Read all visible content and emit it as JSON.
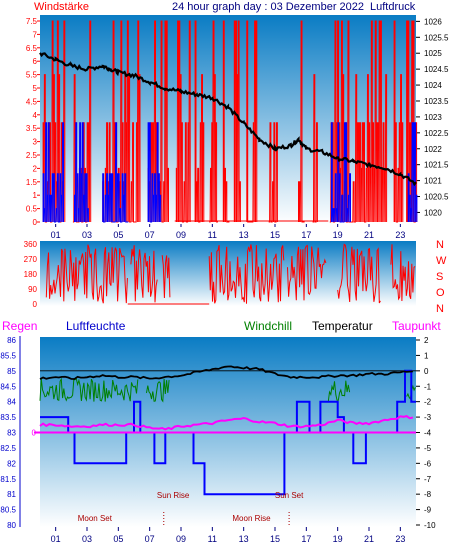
{
  "header": {
    "title": "24 hour graph day : 03 Dezember 2022",
    "left_label": "Windstärke",
    "right_label": "Luftdruck"
  },
  "colors": {
    "panel_top": "#0a7cc4",
    "panel_bottom": "#ffffff",
    "wind_gust": "#ff0000",
    "wind_avg": "#0000ff",
    "pressure": "#000000",
    "direction": "#ff0000",
    "temperature": "#000000",
    "windchill": "#008000",
    "dewpoint": "#ff00ff",
    "humidity": "#0000ff",
    "rain": "#ff00ff",
    "axis_text_left": "#ff0000",
    "axis_text_blue": "#0000cc",
    "moon_text": "#aa0000",
    "time_text": "#000080"
  },
  "time_axis": {
    "labels": [
      "01",
      "03",
      "05",
      "07",
      "09",
      "11",
      "13",
      "15",
      "17",
      "19",
      "21",
      "23"
    ]
  },
  "chart_data": [
    {
      "type": "line",
      "title": "24 hour graph day : 03 Dezember 2022",
      "ylabel_left": "Windstärke",
      "ylabel_right": "Luftdruck",
      "x_range_hours": [
        0,
        24
      ],
      "left_axis": {
        "ticks": [
          "0",
          "0.5",
          "1",
          "1.5",
          "2",
          "2.5",
          "3",
          "3.5",
          "4",
          "4.5",
          "5",
          "5.5",
          "6",
          "6.5",
          "7",
          "7.5"
        ],
        "ylim": [
          0,
          7.5
        ]
      },
      "right_axis": {
        "ticks": [
          "1020",
          "1020.5",
          "1021",
          "1021.5",
          "1022",
          "1022.5",
          "1023",
          "1023.5",
          "1024",
          "1024.5",
          "1025",
          "1025.5",
          "1026"
        ],
        "ylim": [
          1019.7,
          1026.2
        ]
      },
      "series": [
        {
          "name": "Luftdruck",
          "axis": "right",
          "x": [
            0,
            1,
            2,
            3,
            4,
            4.5,
            5,
            6,
            7,
            8,
            9,
            10,
            11,
            12,
            13,
            14,
            15,
            16,
            16.5,
            17,
            18,
            19,
            20,
            21,
            22,
            23,
            24
          ],
          "y": [
            1025.0,
            1024.8,
            1024.6,
            1024.5,
            1024.6,
            1024.5,
            1024.4,
            1024.3,
            1024.1,
            1023.9,
            1023.8,
            1023.7,
            1023.6,
            1023.3,
            1022.8,
            1022.3,
            1022.0,
            1022.1,
            1022.3,
            1022.0,
            1021.9,
            1021.7,
            1021.6,
            1021.5,
            1021.4,
            1021.2,
            1020.9
          ]
        },
        {
          "name": "Böen",
          "axis": "left",
          "segments_hours": [
            [
              0.2,
              1.6
            ],
            [
              2.1,
              3.2
            ],
            [
              4.0,
              6.4
            ],
            [
              6.9,
              8.2
            ],
            [
              8.7,
              9.6
            ],
            [
              9.9,
              10.4
            ],
            [
              10.8,
              11.3
            ],
            [
              11.7,
              12.1
            ],
            [
              12.4,
              12.8
            ],
            [
              13.2,
              13.8
            ],
            [
              14.6,
              15.1
            ],
            [
              16.5,
              16.9
            ],
            [
              17.4,
              17.7
            ],
            [
              18.5,
              22.1
            ],
            [
              22.6,
              23.1
            ],
            [
              23.4,
              24
            ]
          ],
          "peak": 7.5
        },
        {
          "name": "Windgeschwindigkeit",
          "axis": "left",
          "segments_hours": [
            [
              0.2,
              1.5
            ],
            [
              2.2,
              3.1
            ],
            [
              4.0,
              5.6
            ],
            [
              6.9,
              7.7
            ],
            [
              18.6,
              19.8
            ],
            [
              23.5,
              24
            ]
          ],
          "peak": 3.7
        }
      ]
    },
    {
      "type": "line",
      "title": "",
      "y_ticks": [
        "0",
        "90",
        "180",
        "270",
        "360"
      ],
      "ylim": [
        0,
        360
      ],
      "right_labels": [
        "N",
        "W",
        "S",
        "O",
        "N"
      ],
      "series": [
        {
          "name": "Windrichtung",
          "segments_hours": [
            [
              0.4,
              5.6
            ],
            [
              5.8,
              7.5
            ],
            [
              7.8,
              8.3
            ],
            [
              10.8,
              15.6
            ],
            [
              15.8,
              18.3
            ],
            [
              19.0,
              21.8
            ],
            [
              22.4,
              24
            ]
          ],
          "range": [
            0,
            360
          ]
        }
      ]
    },
    {
      "type": "line",
      "title": "",
      "legend": [
        "Regen",
        "Luftfeuchte",
        "Windchill",
        "Temperatur",
        "Taupunkt"
      ],
      "left_axis_rain": {
        "ticks": [
          "0"
        ]
      },
      "left_axis_humidity": {
        "ticks": [
          "80",
          "80.5",
          "81",
          "81.5",
          "82",
          "82.5",
          "83",
          "83.5",
          "84",
          "84.5",
          "85",
          "85.5",
          "86"
        ],
        "ylim": [
          80,
          86
        ]
      },
      "right_axis_temperature": {
        "ticks": [
          "2",
          "1",
          "0",
          "-1",
          "-2",
          "-3",
          "-4",
          "-5",
          "-6",
          "-7",
          "-8",
          "-9",
          "-10"
        ],
        "ylim": [
          -10,
          2
        ]
      },
      "annotations": [
        {
          "text": "Moon Set",
          "hour": 3.5
        },
        {
          "text": "Sun Rise",
          "hour": 8.5
        },
        {
          "text": "Moon Rise",
          "hour": 13.5
        },
        {
          "text": "Sun Set",
          "hour": 15.9
        }
      ],
      "series": [
        {
          "name": "Temperatur",
          "axis": "right",
          "x": [
            0,
            1,
            2,
            3,
            4,
            5,
            6,
            7,
            8,
            9,
            10,
            11,
            12,
            13,
            14,
            15,
            16,
            17,
            18,
            19,
            20,
            21,
            22,
            23,
            24
          ],
          "y": [
            -0.5,
            -0.4,
            -0.5,
            -0.4,
            -0.3,
            -0.4,
            -0.4,
            -0.5,
            -0.4,
            -0.3,
            -0.1,
            0.1,
            0.3,
            0.2,
            0.1,
            -0.2,
            -0.4,
            -0.4,
            -0.4,
            -0.3,
            -0.3,
            -0.2,
            -0.2,
            -0.1,
            0.0
          ]
        },
        {
          "name": "Windchill",
          "axis": "right",
          "segments_hours": [
            [
              0,
              6.3
            ],
            [
              6.8,
              8.3
            ],
            [
              18.4,
              19.8
            ],
            [
              23.4,
              24
            ]
          ],
          "range": [
            -2.0,
            -0.5
          ]
        },
        {
          "name": "Taupunkt",
          "axis": "right",
          "x": [
            0,
            1,
            2,
            3,
            4,
            5,
            6,
            7,
            8,
            9,
            10,
            11,
            12,
            13,
            14,
            15,
            16,
            17,
            18,
            19,
            20,
            21,
            22,
            23,
            24
          ],
          "y": [
            -3.5,
            -3.5,
            -3.6,
            -3.6,
            -3.5,
            -3.5,
            -3.5,
            -3.7,
            -3.8,
            -3.6,
            -3.5,
            -3.4,
            -3.2,
            -3.1,
            -3.3,
            -3.4,
            -3.6,
            -3.6,
            -3.5,
            -3.2,
            -3.4,
            -3.4,
            -3.2,
            -3.0,
            -3.0
          ]
        },
        {
          "name": "Luftfeuchte",
          "axis": "left",
          "steps": [
            [
              0,
              83.5
            ],
            [
              1.8,
              83.5
            ],
            [
              1.8,
              83.0
            ],
            [
              2.2,
              83.0
            ],
            [
              2.2,
              82.0
            ],
            [
              5.5,
              82.0
            ],
            [
              5.5,
              83.0
            ],
            [
              6.0,
              83.0
            ],
            [
              6.0,
              84.0
            ],
            [
              6.4,
              84.0
            ],
            [
              6.4,
              83.0
            ],
            [
              7.3,
              83.0
            ],
            [
              7.3,
              82.0
            ],
            [
              8.0,
              82.0
            ],
            [
              8.0,
              83.0
            ],
            [
              9.8,
              83.0
            ],
            [
              9.8,
              82.0
            ],
            [
              10.5,
              82.0
            ],
            [
              10.5,
              81.0
            ],
            [
              15.6,
              81.0
            ],
            [
              15.6,
              83.0
            ],
            [
              16.4,
              83.0
            ],
            [
              16.4,
              84.0
            ],
            [
              17.2,
              84.0
            ],
            [
              17.2,
              83.0
            ],
            [
              17.9,
              83.0
            ],
            [
              17.9,
              84.0
            ],
            [
              19.0,
              84.0
            ],
            [
              19.0,
              83.5
            ],
            [
              19.4,
              83.5
            ],
            [
              19.4,
              83.0
            ],
            [
              20.0,
              83.0
            ],
            [
              20.0,
              82.0
            ],
            [
              20.8,
              82.0
            ],
            [
              20.8,
              83.0
            ],
            [
              22.8,
              83.0
            ],
            [
              22.8,
              84.0
            ],
            [
              23.3,
              84.0
            ],
            [
              23.3,
              85.0
            ],
            [
              23.7,
              85.0
            ],
            [
              23.7,
              84.0
            ],
            [
              24,
              84.0
            ]
          ]
        },
        {
          "name": "Regen",
          "axis": "left",
          "x": [
            0,
            24
          ],
          "y": [
            0,
            0
          ]
        }
      ]
    }
  ]
}
